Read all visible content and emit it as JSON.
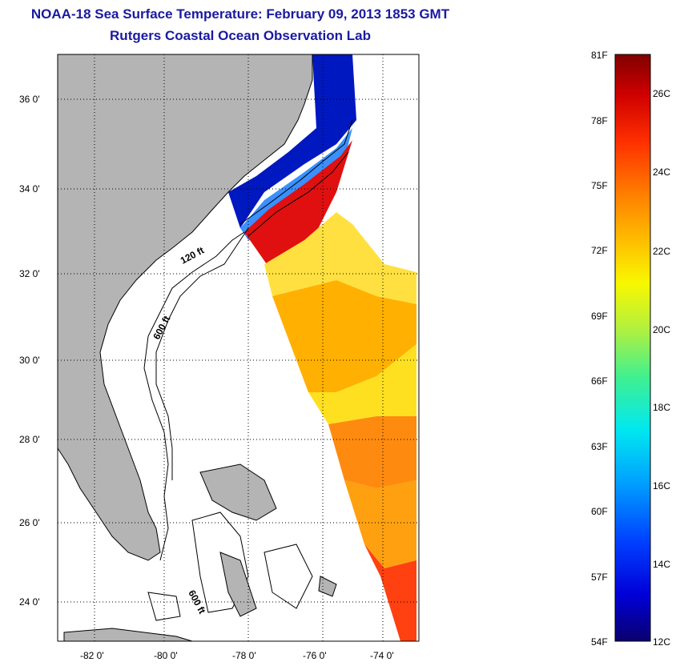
{
  "title": "NOAA-18 Sea Surface Temperature:  February 09, 2013 1853 GMT",
  "subtitle": "Rutgers Coastal Ocean Observation Lab",
  "map": {
    "lat_labels": [
      "36 0'",
      "34 0'",
      "32 0'",
      "30 0'",
      "28 0'",
      "26 0'",
      "24 0'"
    ],
    "lon_labels": [
      "-82 0'",
      "-80 0'",
      "-78 0'",
      "-76 0'",
      "-74 0'"
    ],
    "isobath_labels": [
      "120 ft",
      "600 ft",
      "600 ft"
    ],
    "colors": {
      "land": "#b4b4b4",
      "ocean": "#ffffff",
      "grid": "#000000"
    }
  },
  "colorbar": {
    "f_labels": [
      "81F",
      "78F",
      "75F",
      "72F",
      "69F",
      "66F",
      "63F",
      "60F",
      "57F",
      "54F"
    ],
    "c_labels": [
      "26C",
      "24C",
      "22C",
      "20C",
      "18C",
      "16C",
      "14C",
      "12C"
    ],
    "stops": [
      "#0a006e",
      "#0000d8",
      "#0040ff",
      "#00a0ff",
      "#00e8f0",
      "#40f090",
      "#b0f040",
      "#f8f800",
      "#ffc000",
      "#ff8000",
      "#ff3000",
      "#d00000",
      "#800000"
    ]
  }
}
